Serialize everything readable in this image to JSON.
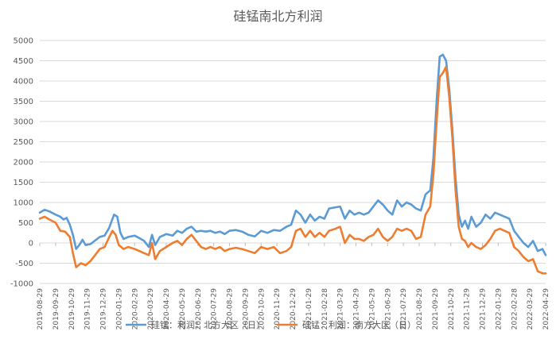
{
  "chart_data": {
    "type": "line",
    "title": "硅锰南北方利润",
    "xlabel": "",
    "ylabel": "",
    "ylim": [
      -1000,
      5000
    ],
    "y_ticks": [
      5000,
      4500,
      4000,
      3500,
      3000,
      2500,
      2000,
      1500,
      1000,
      500,
      0,
      -500,
      -1000
    ],
    "x_ticks": [
      "2019-08-29",
      "2019-09-29",
      "2019-10-29",
      "2019-11-29",
      "2019-12-29",
      "2020-01-29",
      "2020-02-29",
      "2020-03-29",
      "2020-04-29",
      "2020-05-29",
      "2020-06-29",
      "2020-07-29",
      "2020-08-29",
      "2020-09-29",
      "2020-10-29",
      "2020-11-29",
      "2020-12-29",
      "2021-01-29",
      "2021-02-28",
      "2021-03-29",
      "2021-04-29",
      "2021-05-29",
      "2021-06-29",
      "2021-07-29",
      "2021-08-29",
      "2021-09-29",
      "2021-10-29",
      "2021-11-29",
      "2021-12-29",
      "2022-01-29",
      "2022-02-28",
      "2022-03-29",
      "2022-04-29"
    ],
    "grid": true,
    "legend_position": "bottom",
    "series": [
      {
        "name": "硅锰：利润：北方大区（日）",
        "color": "#5B9BD5",
        "points": [
          [
            0,
            750
          ],
          [
            0.3,
            820
          ],
          [
            0.6,
            780
          ],
          [
            1,
            700
          ],
          [
            1.3,
            650
          ],
          [
            1.5,
            580
          ],
          [
            1.7,
            620
          ],
          [
            1.9,
            450
          ],
          [
            2.1,
            200
          ],
          [
            2.3,
            -150
          ],
          [
            2.5,
            -50
          ],
          [
            2.7,
            80
          ],
          [
            2.9,
            -50
          ],
          [
            3.2,
            -30
          ],
          [
            3.5,
            60
          ],
          [
            3.8,
            150
          ],
          [
            4.1,
            180
          ],
          [
            4.4,
            380
          ],
          [
            4.7,
            700
          ],
          [
            4.9,
            650
          ],
          [
            5.1,
            250
          ],
          [
            5.3,
            100
          ],
          [
            5.6,
            150
          ],
          [
            6,
            180
          ],
          [
            6.3,
            120
          ],
          [
            6.6,
            50
          ],
          [
            6.9,
            -100
          ],
          [
            7.1,
            200
          ],
          [
            7.3,
            -50
          ],
          [
            7.6,
            150
          ],
          [
            8,
            220
          ],
          [
            8.4,
            180
          ],
          [
            8.7,
            300
          ],
          [
            9,
            250
          ],
          [
            9.3,
            350
          ],
          [
            9.6,
            400
          ],
          [
            9.9,
            280
          ],
          [
            10.2,
            300
          ],
          [
            10.5,
            280
          ],
          [
            10.8,
            300
          ],
          [
            11.1,
            250
          ],
          [
            11.4,
            280
          ],
          [
            11.7,
            220
          ],
          [
            12,
            300
          ],
          [
            12.4,
            320
          ],
          [
            12.8,
            280
          ],
          [
            13.2,
            200
          ],
          [
            13.6,
            160
          ],
          [
            14,
            300
          ],
          [
            14.4,
            250
          ],
          [
            14.8,
            320
          ],
          [
            15.2,
            300
          ],
          [
            15.6,
            400
          ],
          [
            15.9,
            450
          ],
          [
            16.2,
            800
          ],
          [
            16.5,
            700
          ],
          [
            16.8,
            500
          ],
          [
            17.1,
            700
          ],
          [
            17.4,
            550
          ],
          [
            17.7,
            650
          ],
          [
            18,
            600
          ],
          [
            18.3,
            850
          ],
          [
            18.7,
            880
          ],
          [
            19,
            900
          ],
          [
            19.3,
            600
          ],
          [
            19.6,
            800
          ],
          [
            19.9,
            700
          ],
          [
            20.2,
            750
          ],
          [
            20.5,
            700
          ],
          [
            20.8,
            750
          ],
          [
            21.1,
            900
          ],
          [
            21.4,
            1050
          ],
          [
            21.7,
            950
          ],
          [
            22,
            800
          ],
          [
            22.3,
            700
          ],
          [
            22.6,
            1050
          ],
          [
            22.9,
            900
          ],
          [
            23.2,
            1000
          ],
          [
            23.5,
            950
          ],
          [
            23.8,
            850
          ],
          [
            24.1,
            800
          ],
          [
            24.4,
            1200
          ],
          [
            24.7,
            1300
          ],
          [
            24.9,
            2100
          ],
          [
            25.1,
            3500
          ],
          [
            25.3,
            4600
          ],
          [
            25.5,
            4650
          ],
          [
            25.7,
            4500
          ],
          [
            25.9,
            3800
          ],
          [
            26.1,
            2800
          ],
          [
            26.3,
            1600
          ],
          [
            26.5,
            700
          ],
          [
            26.7,
            400
          ],
          [
            26.9,
            550
          ],
          [
            27.1,
            350
          ],
          [
            27.3,
            650
          ],
          [
            27.6,
            400
          ],
          [
            27.9,
            500
          ],
          [
            28.2,
            700
          ],
          [
            28.5,
            600
          ],
          [
            28.8,
            750
          ],
          [
            29.1,
            700
          ],
          [
            29.4,
            650
          ],
          [
            29.7,
            600
          ],
          [
            30,
            300
          ],
          [
            30.3,
            150
          ],
          [
            30.6,
            0
          ],
          [
            30.9,
            -100
          ],
          [
            31.2,
            50
          ],
          [
            31.5,
            -200
          ],
          [
            31.8,
            -150
          ],
          [
            32,
            -300
          ]
        ]
      },
      {
        "name": "硅锰：利润：南方大区（日）",
        "color": "#ED7D31",
        "points": [
          [
            0,
            600
          ],
          [
            0.3,
            650
          ],
          [
            0.6,
            580
          ],
          [
            1,
            500
          ],
          [
            1.3,
            300
          ],
          [
            1.6,
            280
          ],
          [
            1.9,
            150
          ],
          [
            2.1,
            -250
          ],
          [
            2.3,
            -600
          ],
          [
            2.6,
            -500
          ],
          [
            2.9,
            -550
          ],
          [
            3.2,
            -450
          ],
          [
            3.5,
            -300
          ],
          [
            3.8,
            -150
          ],
          [
            4.1,
            -100
          ],
          [
            4.4,
            150
          ],
          [
            4.6,
            300
          ],
          [
            4.8,
            200
          ],
          [
            5,
            -50
          ],
          [
            5.3,
            -150
          ],
          [
            5.6,
            -100
          ],
          [
            6,
            -150
          ],
          [
            6.3,
            -200
          ],
          [
            6.6,
            -250
          ],
          [
            6.9,
            -300
          ],
          [
            7.1,
            0
          ],
          [
            7.3,
            -400
          ],
          [
            7.6,
            -200
          ],
          [
            8,
            -100
          ],
          [
            8.4,
            0
          ],
          [
            8.7,
            50
          ],
          [
            9,
            -50
          ],
          [
            9.3,
            100
          ],
          [
            9.6,
            200
          ],
          [
            9.9,
            50
          ],
          [
            10.2,
            -100
          ],
          [
            10.5,
            -150
          ],
          [
            10.8,
            -100
          ],
          [
            11.1,
            -150
          ],
          [
            11.4,
            -100
          ],
          [
            11.7,
            -200
          ],
          [
            12,
            -150
          ],
          [
            12.4,
            -120
          ],
          [
            12.8,
            -150
          ],
          [
            13.2,
            -200
          ],
          [
            13.6,
            -250
          ],
          [
            14,
            -100
          ],
          [
            14.4,
            -150
          ],
          [
            14.8,
            -100
          ],
          [
            15.2,
            -250
          ],
          [
            15.6,
            -200
          ],
          [
            15.9,
            -100
          ],
          [
            16.2,
            300
          ],
          [
            16.5,
            350
          ],
          [
            16.8,
            150
          ],
          [
            17.1,
            300
          ],
          [
            17.4,
            150
          ],
          [
            17.7,
            250
          ],
          [
            18,
            150
          ],
          [
            18.3,
            300
          ],
          [
            18.7,
            350
          ],
          [
            19,
            400
          ],
          [
            19.3,
            0
          ],
          [
            19.6,
            200
          ],
          [
            19.9,
            100
          ],
          [
            20.2,
            100
          ],
          [
            20.5,
            50
          ],
          [
            20.8,
            150
          ],
          [
            21.1,
            200
          ],
          [
            21.4,
            350
          ],
          [
            21.7,
            150
          ],
          [
            22,
            50
          ],
          [
            22.3,
            150
          ],
          [
            22.6,
            350
          ],
          [
            22.9,
            300
          ],
          [
            23.2,
            350
          ],
          [
            23.5,
            300
          ],
          [
            23.8,
            100
          ],
          [
            24.1,
            150
          ],
          [
            24.4,
            700
          ],
          [
            24.7,
            900
          ],
          [
            24.9,
            1700
          ],
          [
            25.1,
            3000
          ],
          [
            25.3,
            4100
          ],
          [
            25.5,
            4200
          ],
          [
            25.7,
            4350
          ],
          [
            25.9,
            3600
          ],
          [
            26.1,
            2600
          ],
          [
            26.3,
            1300
          ],
          [
            26.5,
            400
          ],
          [
            26.7,
            100
          ],
          [
            26.9,
            50
          ],
          [
            27.1,
            -100
          ],
          [
            27.3,
            0
          ],
          [
            27.6,
            -100
          ],
          [
            27.9,
            -150
          ],
          [
            28.2,
            -50
          ],
          [
            28.5,
            100
          ],
          [
            28.8,
            300
          ],
          [
            29.1,
            350
          ],
          [
            29.4,
            300
          ],
          [
            29.7,
            250
          ],
          [
            30,
            -100
          ],
          [
            30.3,
            -200
          ],
          [
            30.6,
            -350
          ],
          [
            30.9,
            -450
          ],
          [
            31.2,
            -400
          ],
          [
            31.5,
            -700
          ],
          [
            31.8,
            -750
          ],
          [
            32,
            -750
          ]
        ]
      }
    ]
  }
}
